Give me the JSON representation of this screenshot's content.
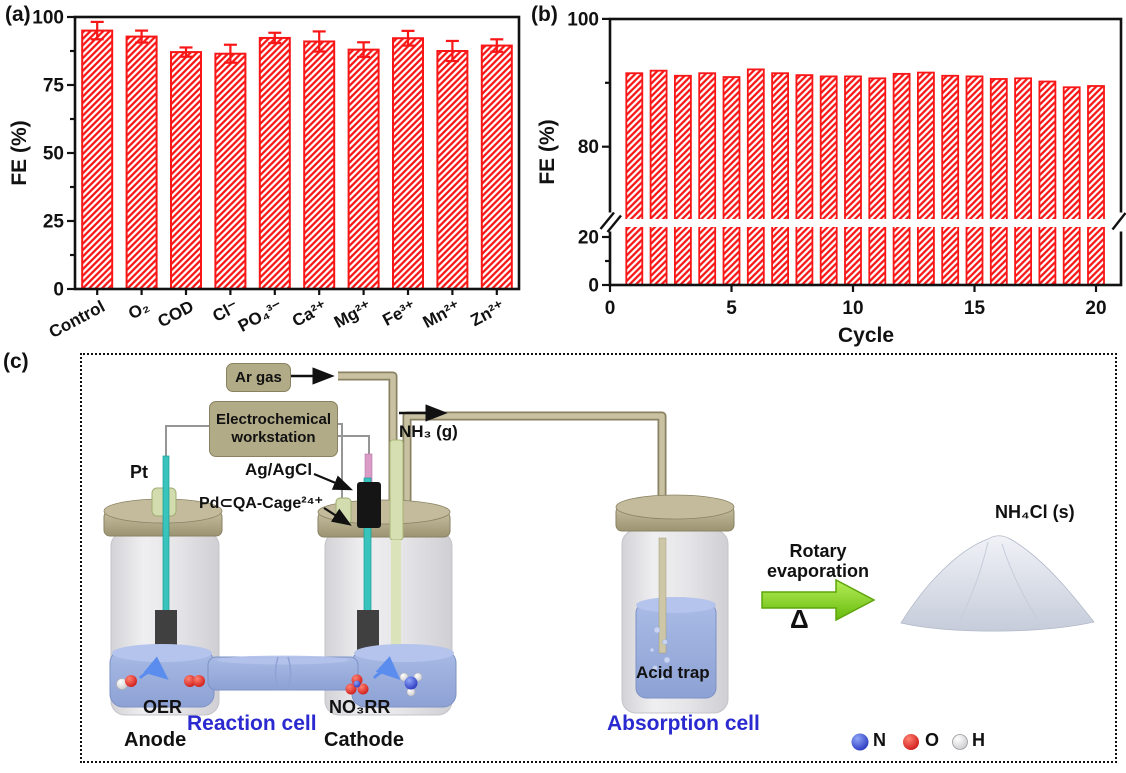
{
  "figure": {
    "panels": {
      "a": "(a)",
      "b": "(b)",
      "c": "(c)"
    }
  },
  "colors": {
    "bar_red": "#f81616",
    "axis_black": "#111111",
    "blue_label": "#2a2ad0",
    "box_khaki": "#b2ab87",
    "liquid_blue": "#9db0dd",
    "green_arrow": "#7ed321",
    "n_sphere_blue": "#1a1acc",
    "o_sphere_red": "#dd1111",
    "h_sphere_white": "#f2f2f2"
  },
  "chart_data": [
    {
      "id": "a",
      "type": "bar",
      "title": "",
      "ylabel": "FE (%)",
      "xlabel": "",
      "ylim": [
        0,
        100
      ],
      "yticks": [
        0,
        25,
        50,
        75,
        100
      ],
      "grid": false,
      "bar_style": "red-diagonal-hatch",
      "categories": [
        "Control",
        "O₂",
        "COD",
        "Cl⁻",
        "PO₄³⁻",
        "Ca²⁺",
        "Mg²⁺",
        "Fe³⁺",
        "Mn²⁺",
        "Zn²⁺"
      ],
      "values": [
        95.0,
        92.8,
        87.1,
        86.5,
        92.3,
        91.0,
        88.0,
        92.2,
        87.5,
        89.5
      ],
      "errors": [
        3.2,
        2.2,
        1.7,
        3.3,
        1.9,
        3.7,
        2.7,
        2.7,
        3.7,
        2.3
      ]
    },
    {
      "id": "b",
      "type": "bar",
      "title": "",
      "ylabel": "FE (%)",
      "xlabel": "Cycle",
      "axis_break_between": [
        25,
        67
      ],
      "yticks_lower": [
        0,
        20
      ],
      "yticks_upper": [
        80,
        100
      ],
      "xticks": [
        0,
        5,
        10,
        15,
        20
      ],
      "grid": false,
      "bar_style": "red-diagonal-hatch",
      "x": [
        1,
        2,
        3,
        4,
        5,
        6,
        7,
        8,
        9,
        10,
        11,
        12,
        13,
        14,
        15,
        16,
        17,
        18,
        19,
        20
      ],
      "values": [
        91.5,
        91.9,
        91.1,
        91.5,
        90.9,
        92.1,
        91.5,
        91.2,
        91.0,
        91.0,
        90.7,
        91.4,
        91.6,
        91.1,
        91.0,
        90.6,
        90.7,
        90.2,
        89.3,
        89.5
      ]
    }
  ],
  "diagram": {
    "ar_gas": "Ar gas",
    "workstation": "Electrochemical workstation",
    "nh3_gas": "NH₃ (g)",
    "pt": "Pt",
    "ag_agcl": "Ag/AgCl",
    "pd_cage": "Pd⊂QA-Cage²⁴⁺",
    "oer": "OER",
    "no3rr": "NO₃RR",
    "anode": "Anode",
    "cathode": "Cathode",
    "reaction_cell": "Reaction cell",
    "acid_trap": "Acid trap",
    "absorption_cell": "Absorption cell",
    "rotary_evaporation": "Rotary evaporation",
    "delta": "Δ",
    "nh4cl": "NH₄Cl (s)",
    "legend": {
      "n": "N",
      "o": "O",
      "h": "H"
    }
  }
}
